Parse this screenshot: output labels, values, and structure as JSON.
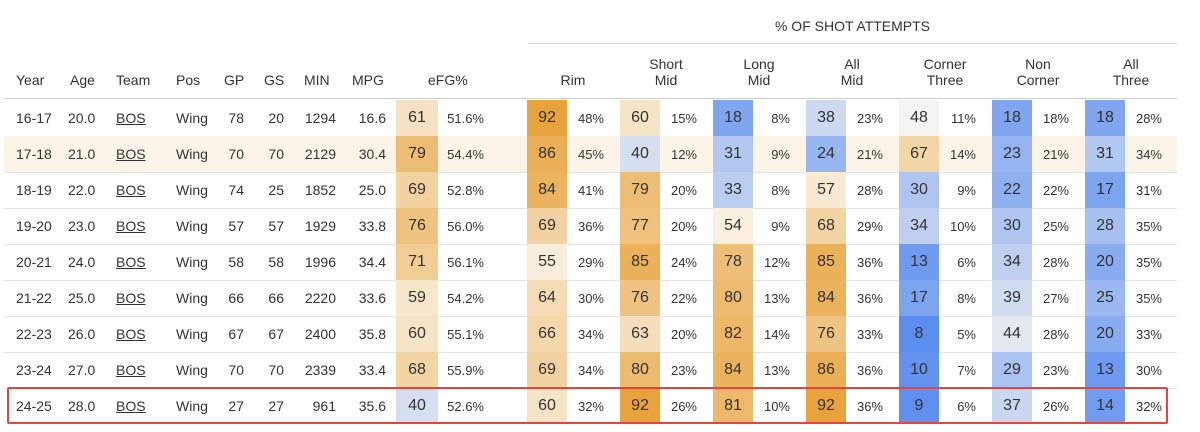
{
  "header": {
    "group_title": "% OF SHOT ATTEMPTS",
    "columns": {
      "year": "Year",
      "age": "Age",
      "team": "Team",
      "pos": "Pos",
      "gp": "GP",
      "gs": "GS",
      "min": "MIN",
      "mpg": "MPG",
      "efg": "eFG%",
      "rim": "Rim",
      "short_mid_1": "Short",
      "short_mid_2": "Mid",
      "long_mid_1": "Long",
      "long_mid_2": "Mid",
      "all_mid_1": "All",
      "all_mid_2": "Mid",
      "corner_three_1": "Corner",
      "corner_three_2": "Three",
      "non_corner_1": "Non",
      "non_corner_2": "Corner",
      "all_three_1": "All",
      "all_three_2": "Three"
    }
  },
  "colors": {
    "hot": "#e8a33d",
    "neutral": "#fbf8f1",
    "cold": "#5b8def",
    "highlight_border": "#e4463e",
    "highlight_row_bg": "#fcf5e7"
  },
  "highlighted_rows": [
    1
  ],
  "focus_row": 8,
  "chart_data": {
    "type": "table",
    "title": "% OF SHOT ATTEMPTS",
    "columns": [
      "Year",
      "Age",
      "Team",
      "Pos",
      "GP",
      "GS",
      "MIN",
      "MPG",
      "eFG% pctile",
      "eFG%",
      "Rim pctile",
      "Rim",
      "Short Mid pctile",
      "Short Mid",
      "Long Mid pctile",
      "Long Mid",
      "All Mid pctile",
      "All Mid",
      "Corner Three pctile",
      "Corner Three",
      "Non Corner pctile",
      "Non Corner",
      "All Three pctile",
      "All Three"
    ],
    "rows": [
      {
        "year": "16-17",
        "age": "20.0",
        "team": "BOS",
        "pos": "Wing",
        "gp": "78",
        "gs": "20",
        "min": "1294",
        "mpg": "16.6",
        "efg": [
          61,
          "51.6%"
        ],
        "rim": [
          92,
          "48%"
        ],
        "short_mid": [
          60,
          "15%"
        ],
        "long_mid": [
          18,
          "8%"
        ],
        "all_mid": [
          38,
          "23%"
        ],
        "corner_three": [
          48,
          "11%"
        ],
        "non_corner": [
          18,
          "18%"
        ],
        "all_three": [
          18,
          "28%"
        ]
      },
      {
        "year": "17-18",
        "age": "21.0",
        "team": "BOS",
        "pos": "Wing",
        "gp": "70",
        "gs": "70",
        "min": "2129",
        "mpg": "30.4",
        "efg": [
          79,
          "54.4%"
        ],
        "rim": [
          86,
          "45%"
        ],
        "short_mid": [
          40,
          "12%"
        ],
        "long_mid": [
          31,
          "9%"
        ],
        "all_mid": [
          24,
          "21%"
        ],
        "corner_three": [
          67,
          "14%"
        ],
        "non_corner": [
          23,
          "21%"
        ],
        "all_three": [
          31,
          "34%"
        ]
      },
      {
        "year": "18-19",
        "age": "22.0",
        "team": "BOS",
        "pos": "Wing",
        "gp": "74",
        "gs": "25",
        "min": "1852",
        "mpg": "25.0",
        "efg": [
          69,
          "52.8%"
        ],
        "rim": [
          84,
          "41%"
        ],
        "short_mid": [
          79,
          "20%"
        ],
        "long_mid": [
          33,
          "8%"
        ],
        "all_mid": [
          57,
          "28%"
        ],
        "corner_three": [
          30,
          "9%"
        ],
        "non_corner": [
          22,
          "22%"
        ],
        "all_three": [
          17,
          "31%"
        ]
      },
      {
        "year": "19-20",
        "age": "23.0",
        "team": "BOS",
        "pos": "Wing",
        "gp": "57",
        "gs": "57",
        "min": "1929",
        "mpg": "33.8",
        "efg": [
          76,
          "56.0%"
        ],
        "rim": [
          69,
          "36%"
        ],
        "short_mid": [
          77,
          "20%"
        ],
        "long_mid": [
          54,
          "9%"
        ],
        "all_mid": [
          68,
          "29%"
        ],
        "corner_three": [
          34,
          "10%"
        ],
        "non_corner": [
          30,
          "25%"
        ],
        "all_three": [
          28,
          "35%"
        ]
      },
      {
        "year": "20-21",
        "age": "24.0",
        "team": "BOS",
        "pos": "Wing",
        "gp": "58",
        "gs": "58",
        "min": "1996",
        "mpg": "34.4",
        "efg": [
          71,
          "56.1%"
        ],
        "rim": [
          55,
          "29%"
        ],
        "short_mid": [
          85,
          "24%"
        ],
        "long_mid": [
          78,
          "12%"
        ],
        "all_mid": [
          85,
          "36%"
        ],
        "corner_three": [
          13,
          "6%"
        ],
        "non_corner": [
          34,
          "28%"
        ],
        "all_three": [
          20,
          "35%"
        ]
      },
      {
        "year": "21-22",
        "age": "25.0",
        "team": "BOS",
        "pos": "Wing",
        "gp": "66",
        "gs": "66",
        "min": "2220",
        "mpg": "33.6",
        "efg": [
          59,
          "54.2%"
        ],
        "rim": [
          64,
          "30%"
        ],
        "short_mid": [
          76,
          "22%"
        ],
        "long_mid": [
          80,
          "13%"
        ],
        "all_mid": [
          84,
          "36%"
        ],
        "corner_three": [
          17,
          "8%"
        ],
        "non_corner": [
          39,
          "27%"
        ],
        "all_three": [
          25,
          "35%"
        ]
      },
      {
        "year": "22-23",
        "age": "26.0",
        "team": "BOS",
        "pos": "Wing",
        "gp": "67",
        "gs": "67",
        "min": "2400",
        "mpg": "35.8",
        "efg": [
          60,
          "55.1%"
        ],
        "rim": [
          66,
          "34%"
        ],
        "short_mid": [
          63,
          "20%"
        ],
        "long_mid": [
          82,
          "14%"
        ],
        "all_mid": [
          76,
          "33%"
        ],
        "corner_three": [
          8,
          "5%"
        ],
        "non_corner": [
          44,
          "28%"
        ],
        "all_three": [
          20,
          "33%"
        ]
      },
      {
        "year": "23-24",
        "age": "27.0",
        "team": "BOS",
        "pos": "Wing",
        "gp": "70",
        "gs": "70",
        "min": "2339",
        "mpg": "33.4",
        "efg": [
          68,
          "55.9%"
        ],
        "rim": [
          69,
          "34%"
        ],
        "short_mid": [
          80,
          "23%"
        ],
        "long_mid": [
          84,
          "13%"
        ],
        "all_mid": [
          86,
          "36%"
        ],
        "corner_three": [
          10,
          "7%"
        ],
        "non_corner": [
          29,
          "23%"
        ],
        "all_three": [
          13,
          "30%"
        ]
      },
      {
        "year": "24-25",
        "age": "28.0",
        "team": "BOS",
        "pos": "Wing",
        "gp": "27",
        "gs": "27",
        "min": "961",
        "mpg": "35.6",
        "efg": [
          40,
          "52.6%"
        ],
        "rim": [
          60,
          "32%"
        ],
        "short_mid": [
          92,
          "26%"
        ],
        "long_mid": [
          81,
          "10%"
        ],
        "all_mid": [
          92,
          "36%"
        ],
        "corner_three": [
          9,
          "6%"
        ],
        "non_corner": [
          37,
          "26%"
        ],
        "all_three": [
          14,
          "32%"
        ]
      }
    ]
  }
}
